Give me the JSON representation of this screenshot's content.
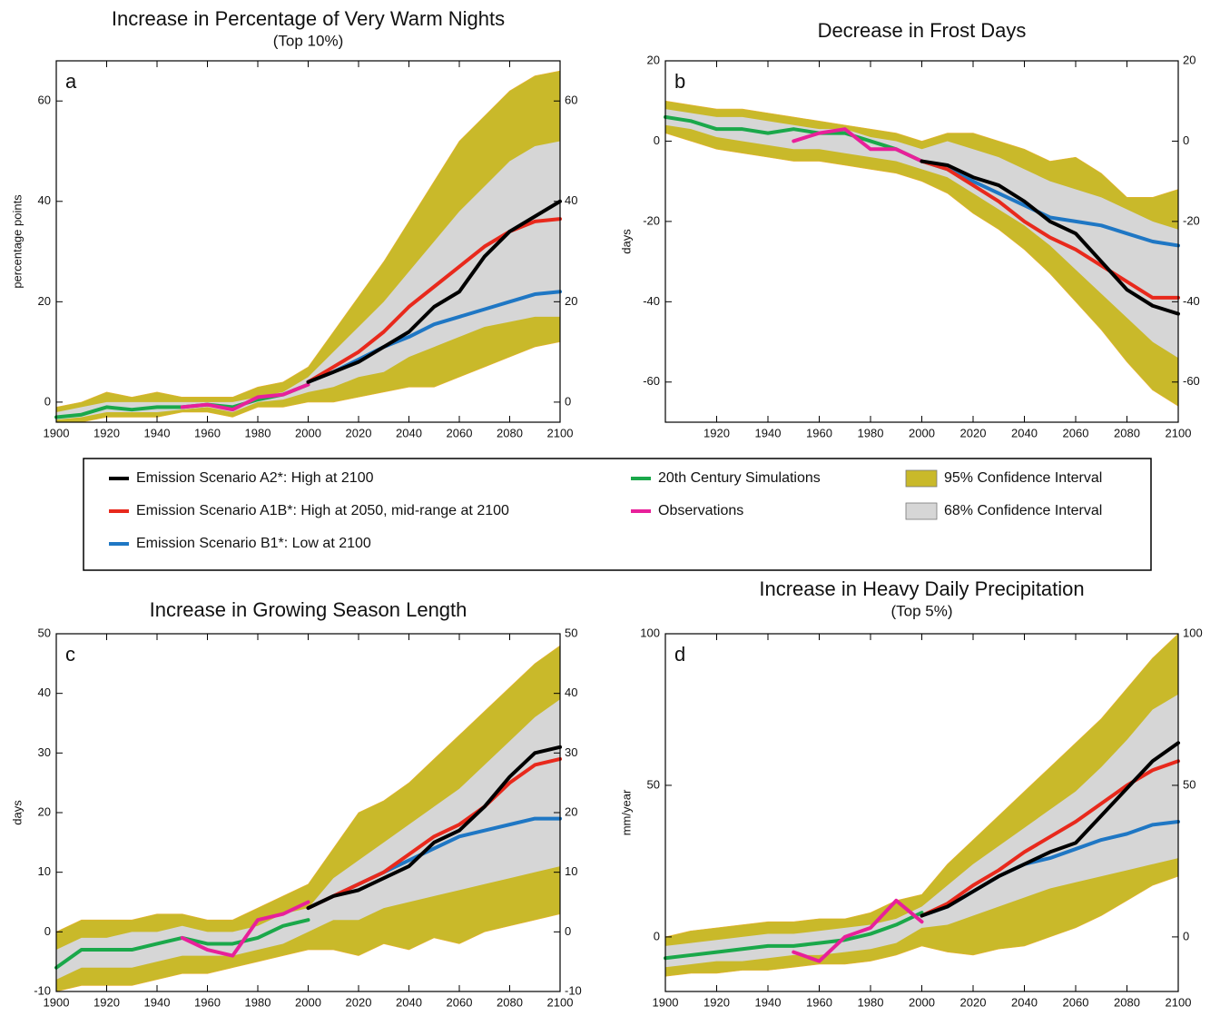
{
  "chart_data": [
    {
      "type": "line",
      "title": "Increase in Percentage of Very Warm Nights",
      "subtitle": "(Top 10%)",
      "panel": "a",
      "ylabel": "percentage points",
      "x": [
        1900,
        1910,
        1920,
        1930,
        1940,
        1950,
        1960,
        1970,
        1980,
        1990,
        2000,
        2010,
        2020,
        2030,
        2040,
        2050,
        2060,
        2070,
        2080,
        2090,
        2100
      ],
      "xlim": [
        1900,
        2100
      ],
      "xticks": [
        1900,
        1920,
        1940,
        1960,
        1980,
        2000,
        2020,
        2040,
        2060,
        2080,
        2100
      ],
      "ylim": [
        -4,
        68
      ],
      "yticks": [
        0,
        20,
        40,
        60
      ],
      "series": [
        {
          "name": "Emission Scenario A2*: High at 2100",
          "color": "#000000",
          "values": [
            null,
            null,
            null,
            null,
            null,
            null,
            null,
            null,
            null,
            null,
            4,
            6,
            8,
            11,
            14,
            19,
            22,
            29,
            34,
            37,
            40
          ]
        },
        {
          "name": "Emission Scenario A1B*: High at 2050, mid-range at 2100",
          "color": "#e8291c",
          "values": [
            null,
            null,
            null,
            null,
            null,
            null,
            null,
            null,
            null,
            null,
            4,
            7,
            10,
            14,
            19,
            23,
            27,
            31,
            34,
            36,
            36.5
          ]
        },
        {
          "name": "Emission Scenario B1*: Low at 2100",
          "color": "#1f77c4",
          "values": [
            null,
            null,
            null,
            null,
            null,
            null,
            null,
            null,
            null,
            null,
            4,
            6,
            8.5,
            11,
            13,
            15.5,
            17,
            18.5,
            20,
            21.5,
            22
          ]
        },
        {
          "name": "20th Century Simulations",
          "color": "#1aa84a",
          "values": [
            -3,
            -2.5,
            -1,
            -1.5,
            -1,
            -1,
            -0.5,
            -1,
            0.5,
            1.5,
            3.5,
            null,
            null,
            null,
            null,
            null,
            null,
            null,
            null,
            null,
            null
          ]
        },
        {
          "name": "Observations",
          "color": "#e8209a",
          "values": [
            null,
            null,
            null,
            null,
            null,
            -1,
            -0.5,
            -1.5,
            1,
            1.5,
            3.5,
            null,
            null,
            null,
            null,
            null,
            null,
            null,
            null,
            null,
            null
          ]
        }
      ],
      "bands": [
        {
          "name": "95% Confidence Interval",
          "color": "#c9b92a",
          "upper": [
            -1,
            0,
            2,
            1,
            2,
            1,
            1,
            1,
            3,
            4,
            7,
            14,
            21,
            28,
            36,
            44,
            52,
            57,
            62,
            65,
            66
          ],
          "lower": [
            -4,
            -4,
            -3,
            -3,
            -3,
            -2,
            -2,
            -3,
            -1,
            -1,
            0,
            0,
            1,
            2,
            3,
            3,
            5,
            7,
            9,
            11,
            12
          ]
        },
        {
          "name": "68% Confidence Interval",
          "color": "#d6d6d6",
          "upper": [
            -2,
            -1,
            0,
            0,
            0,
            0,
            0,
            0,
            1,
            2,
            5,
            10,
            15,
            20,
            26,
            32,
            38,
            43,
            48,
            51,
            52
          ],
          "lower": [
            -3.5,
            -3,
            -2,
            -2,
            -2,
            -1.5,
            -1,
            -2,
            0,
            0.5,
            2,
            3,
            5,
            6,
            9,
            11,
            13,
            15,
            16,
            17,
            17
          ]
        }
      ]
    },
    {
      "type": "line",
      "title": "Decrease in Frost Days",
      "panel": "b",
      "ylabel": "days",
      "x": [
        1900,
        1910,
        1920,
        1930,
        1940,
        1950,
        1960,
        1970,
        1980,
        1990,
        2000,
        2010,
        2020,
        2030,
        2040,
        2050,
        2060,
        2070,
        2080,
        2090,
        2100
      ],
      "xlim": [
        1900,
        2100
      ],
      "xticks": [
        1920,
        1940,
        1960,
        1980,
        2000,
        2020,
        2040,
        2060,
        2080,
        2100
      ],
      "ylim": [
        -70,
        20
      ],
      "yticks": [
        -60,
        -40,
        -20,
        0,
        20
      ],
      "series": [
        {
          "color": "#000000",
          "values": [
            null,
            null,
            null,
            null,
            null,
            null,
            null,
            null,
            null,
            null,
            -5,
            -6,
            -9,
            -11,
            -15,
            -20,
            -23,
            -30,
            -37,
            -41,
            -43
          ]
        },
        {
          "color": "#e8291c",
          "values": [
            null,
            null,
            null,
            null,
            null,
            null,
            null,
            null,
            null,
            null,
            -5,
            -7,
            -11,
            -15,
            -20,
            -24,
            -27,
            -31,
            -35,
            -39,
            -39
          ]
        },
        {
          "color": "#1f77c4",
          "values": [
            null,
            null,
            null,
            null,
            null,
            null,
            null,
            null,
            null,
            null,
            -5,
            -7,
            -10,
            -13,
            -16,
            -19,
            -20,
            -21,
            -23,
            -25,
            -26
          ]
        },
        {
          "color": "#1aa84a",
          "values": [
            6,
            5,
            3,
            3,
            2,
            3,
            2,
            2,
            0,
            -2,
            -5,
            null,
            null,
            null,
            null,
            null,
            null,
            null,
            null,
            null,
            null
          ]
        },
        {
          "color": "#e8209a",
          "values": [
            null,
            null,
            null,
            null,
            null,
            0,
            2,
            3,
            -2,
            -2,
            -5,
            null,
            null,
            null,
            null,
            null,
            null,
            null,
            null,
            null,
            null
          ]
        }
      ],
      "bands": [
        {
          "color": "#c9b92a",
          "upper": [
            10,
            9,
            8,
            8,
            7,
            6,
            5,
            4,
            3,
            2,
            0,
            2,
            2,
            0,
            -2,
            -5,
            -4,
            -8,
            -14,
            -14,
            -12
          ],
          "lower": [
            2,
            0,
            -2,
            -3,
            -4,
            -5,
            -5,
            -6,
            -7,
            -8,
            -10,
            -13,
            -18,
            -22,
            -27,
            -33,
            -40,
            -47,
            -55,
            -62,
            -66
          ]
        },
        {
          "color": "#d6d6d6",
          "upper": [
            8,
            7,
            6,
            6,
            5,
            4,
            3,
            3,
            1,
            0,
            -2,
            0,
            -2,
            -4,
            -7,
            -10,
            -12,
            -14,
            -17,
            -20,
            -22
          ],
          "lower": [
            4,
            3,
            1,
            0,
            -1,
            -2,
            -2,
            -3,
            -4,
            -5,
            -7,
            -9,
            -13,
            -17,
            -21,
            -26,
            -32,
            -38,
            -44,
            -50,
            -54
          ]
        }
      ]
    },
    {
      "type": "line",
      "title": "Increase in Growing Season Length",
      "panel": "c",
      "ylabel": "days",
      "x": [
        1900,
        1910,
        1920,
        1930,
        1940,
        1950,
        1960,
        1970,
        1980,
        1990,
        2000,
        2010,
        2020,
        2030,
        2040,
        2050,
        2060,
        2070,
        2080,
        2090,
        2100
      ],
      "xlim": [
        1900,
        2100
      ],
      "xticks": [
        1900,
        1920,
        1940,
        1960,
        1980,
        2000,
        2020,
        2040,
        2060,
        2080,
        2100
      ],
      "ylim": [
        -10,
        50
      ],
      "yticks": [
        -10,
        0,
        10,
        20,
        30,
        40,
        50
      ],
      "series": [
        {
          "color": "#000000",
          "values": [
            null,
            null,
            null,
            null,
            null,
            null,
            null,
            null,
            null,
            null,
            4,
            6,
            7,
            9,
            11,
            15,
            17,
            21,
            26,
            30,
            31
          ]
        },
        {
          "color": "#e8291c",
          "values": [
            null,
            null,
            null,
            null,
            null,
            null,
            null,
            null,
            null,
            null,
            4,
            6,
            8,
            10,
            13,
            16,
            18,
            21,
            25,
            28,
            29
          ]
        },
        {
          "color": "#1f77c4",
          "values": [
            null,
            null,
            null,
            null,
            null,
            null,
            null,
            null,
            null,
            null,
            4,
            6,
            8,
            10,
            12,
            14,
            16,
            17,
            18,
            19,
            19
          ]
        },
        {
          "color": "#1aa84a",
          "values": [
            -6,
            -3,
            -3,
            -3,
            -2,
            -1,
            -2,
            -2,
            -1,
            1,
            2,
            null,
            null,
            null,
            null,
            null,
            null,
            null,
            null,
            null,
            null
          ]
        },
        {
          "color": "#e8209a",
          "values": [
            null,
            null,
            null,
            null,
            null,
            -1,
            -3,
            -4,
            2,
            3,
            5,
            null,
            null,
            null,
            null,
            null,
            null,
            null,
            null,
            null,
            null
          ]
        }
      ],
      "bands": [
        {
          "color": "#c9b92a",
          "upper": [
            0,
            2,
            2,
            2,
            3,
            3,
            2,
            2,
            4,
            6,
            8,
            14,
            20,
            22,
            25,
            29,
            33,
            37,
            41,
            45,
            48
          ],
          "lower": [
            -10,
            -9,
            -9,
            -9,
            -8,
            -7,
            -7,
            -6,
            -5,
            -4,
            -3,
            -3,
            -4,
            -2,
            -3,
            -1,
            -2,
            0,
            1,
            2,
            3
          ]
        },
        {
          "color": "#d6d6d6",
          "upper": [
            -3,
            -1,
            -1,
            0,
            0,
            1,
            0,
            0,
            1,
            3,
            4,
            9,
            12,
            15,
            18,
            21,
            24,
            28,
            32,
            36,
            39
          ],
          "lower": [
            -8,
            -6,
            -6,
            -6,
            -5,
            -4,
            -4,
            -4,
            -3,
            -2,
            0,
            2,
            2,
            4,
            5,
            6,
            7,
            8,
            9,
            10,
            11
          ]
        }
      ]
    },
    {
      "type": "line",
      "title": "Increase in Heavy Daily Precipitation",
      "subtitle": "(Top 5%)",
      "panel": "d",
      "ylabel": "mm/year",
      "x": [
        1900,
        1910,
        1920,
        1930,
        1940,
        1950,
        1960,
        1970,
        1980,
        1990,
        2000,
        2010,
        2020,
        2030,
        2040,
        2050,
        2060,
        2070,
        2080,
        2090,
        2100
      ],
      "xlim": [
        1900,
        2100
      ],
      "xticks": [
        1900,
        1920,
        1940,
        1960,
        1980,
        2000,
        2020,
        2040,
        2060,
        2080,
        2100
      ],
      "ylim": [
        -18,
        100
      ],
      "yticks": [
        0,
        50,
        100
      ],
      "series": [
        {
          "color": "#000000",
          "values": [
            null,
            null,
            null,
            null,
            null,
            null,
            null,
            null,
            null,
            null,
            7,
            10,
            15,
            20,
            24,
            28,
            31,
            40,
            49,
            58,
            64
          ]
        },
        {
          "color": "#e8291c",
          "values": [
            null,
            null,
            null,
            null,
            null,
            null,
            null,
            null,
            null,
            null,
            7,
            11,
            17,
            22,
            28,
            33,
            38,
            44,
            50,
            55,
            58
          ]
        },
        {
          "color": "#1f77c4",
          "values": [
            null,
            null,
            null,
            null,
            null,
            null,
            null,
            null,
            null,
            null,
            7,
            10,
            15,
            20,
            24,
            26,
            29,
            32,
            34,
            37,
            38
          ]
        },
        {
          "color": "#1aa84a",
          "values": [
            -7,
            -6,
            -5,
            -4,
            -3,
            -3,
            -2,
            -1,
            1,
            4,
            8,
            null,
            null,
            null,
            null,
            null,
            null,
            null,
            null,
            null,
            null
          ]
        },
        {
          "color": "#e8209a",
          "values": [
            null,
            null,
            null,
            null,
            null,
            -5,
            -8,
            0,
            3,
            12,
            5,
            null,
            null,
            null,
            null,
            null,
            null,
            null,
            null,
            null,
            null
          ]
        }
      ],
      "bands": [
        {
          "color": "#c9b92a",
          "upper": [
            0,
            2,
            3,
            4,
            5,
            5,
            6,
            6,
            8,
            12,
            14,
            24,
            32,
            40,
            48,
            56,
            64,
            72,
            82,
            92,
            100
          ],
          "lower": [
            -13,
            -12,
            -12,
            -11,
            -11,
            -10,
            -9,
            -9,
            -8,
            -6,
            -3,
            -5,
            -6,
            -4,
            -3,
            0,
            3,
            7,
            12,
            17,
            20
          ]
        },
        {
          "color": "#d6d6d6",
          "upper": [
            -3,
            -2,
            -1,
            0,
            1,
            1,
            2,
            3,
            4,
            6,
            10,
            17,
            24,
            30,
            36,
            42,
            48,
            56,
            65,
            75,
            80
          ],
          "lower": [
            -10,
            -9,
            -8,
            -8,
            -7,
            -6,
            -6,
            -5,
            -4,
            -2,
            3,
            4,
            7,
            10,
            13,
            16,
            18,
            20,
            22,
            24,
            26
          ]
        }
      ]
    }
  ]
}
